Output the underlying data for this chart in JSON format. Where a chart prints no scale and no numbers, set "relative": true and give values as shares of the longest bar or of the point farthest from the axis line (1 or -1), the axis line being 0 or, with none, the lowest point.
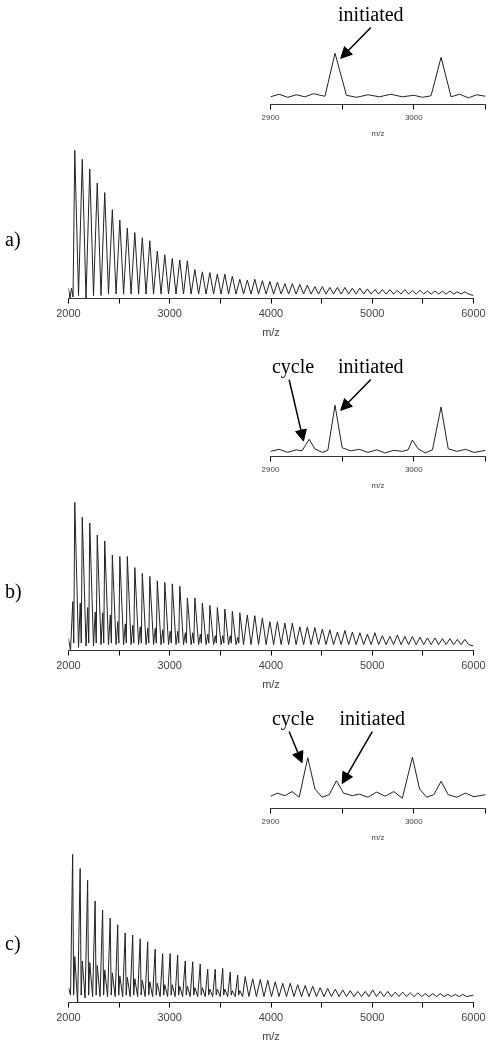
{
  "chart_data": [
    {
      "type": "line",
      "title": "a)",
      "xlabel": "m/z",
      "relative": true,
      "xlim": [
        2000,
        6000
      ],
      "xticks": [
        2000,
        {
          "value": 2500,
          "label": null
        },
        3000,
        {
          "value": 3500,
          "label": null
        },
        4000,
        {
          "value": 4500,
          "label": null
        },
        5000,
        {
          "value": 5500,
          "label": null
        },
        6000
      ],
      "series": [
        {
          "color": "#222222",
          "x": [
            2000,
            2015,
            2030,
            2045,
            2062,
            2099,
            2136,
            2173,
            2210,
            2247,
            2284,
            2321,
            2358,
            2395,
            2433,
            2470,
            2507,
            2544,
            2581,
            2618,
            2655,
            2692,
            2729,
            2766,
            2803,
            2840,
            2877,
            2914,
            2951,
            2988,
            3025,
            3062,
            3099,
            3136,
            3174,
            3211,
            3248,
            3285,
            3322,
            3359,
            3396,
            3433,
            3470,
            3507,
            3544,
            3581,
            3618,
            3655,
            3692,
            3729,
            3766,
            3803,
            3840,
            3877,
            3915,
            3952,
            3989,
            4026,
            4063,
            4100,
            4137,
            4174,
            4211,
            4248,
            4285,
            4322,
            4359,
            4396,
            4433,
            4470,
            4507,
            4544,
            4581,
            4618,
            4656,
            4693,
            4730,
            4767,
            4804,
            4841,
            4878,
            4915,
            4952,
            4989,
            5026,
            5063,
            5100,
            5137,
            5174,
            5211,
            5248,
            5285,
            5322,
            5359,
            5397,
            5434,
            5471,
            5508,
            5545,
            5582,
            5619,
            5656,
            5693,
            5730,
            5767,
            5804,
            5841,
            5878,
            5915,
            5952,
            6000
          ],
          "values": [
            0.07,
            0.0,
            0.07,
            0.01,
            1.0,
            0.02,
            0.94,
            0.0,
            0.875,
            0.02,
            0.78,
            0.02,
            0.715,
            0.03,
            0.6,
            0.03,
            0.53,
            0.03,
            0.475,
            0.03,
            0.445,
            0.03,
            0.41,
            0.03,
            0.39,
            0.03,
            0.32,
            0.03,
            0.295,
            0.03,
            0.27,
            0.03,
            0.26,
            0.03,
            0.255,
            0.03,
            0.195,
            0.03,
            0.18,
            0.03,
            0.175,
            0.03,
            0.165,
            0.03,
            0.165,
            0.03,
            0.15,
            0.03,
            0.13,
            0.03,
            0.125,
            0.03,
            0.13,
            0.03,
            0.12,
            0.03,
            0.115,
            0.03,
            0.11,
            0.03,
            0.1,
            0.03,
            0.1,
            0.03,
            0.095,
            0.03,
            0.09,
            0.03,
            0.08,
            0.03,
            0.08,
            0.03,
            0.075,
            0.03,
            0.075,
            0.03,
            0.075,
            0.03,
            0.07,
            0.03,
            0.07,
            0.03,
            0.065,
            0.03,
            0.06,
            0.03,
            0.06,
            0.03,
            0.06,
            0.03,
            0.055,
            0.03,
            0.06,
            0.03,
            0.055,
            0.03,
            0.055,
            0.03,
            0.05,
            0.03,
            0.05,
            0.03,
            0.05,
            0.03,
            0.05,
            0.03,
            0.045,
            0.03,
            0.045,
            0.03,
            0.02
          ]
        }
      ]
    },
    {
      "type": "line",
      "xlabel": "m/z",
      "relative": true,
      "xlim": [
        2900,
        3050
      ],
      "xticks": [
        2900,
        {
          "value": 2950,
          "label": null
        },
        3000,
        {
          "value": 3050,
          "label": null
        }
      ],
      "annotations": [
        {
          "text": "initiated",
          "x": 2945,
          "y": 1.0
        }
      ],
      "series": [
        {
          "color": "#222222",
          "x": [
            2900,
            2906,
            2912,
            2918,
            2924,
            2930,
            2938,
            2945,
            2953,
            2960,
            2968,
            2976,
            2984,
            2992,
            3000,
            3006,
            3012,
            3019,
            3026,
            3032,
            3038,
            3044,
            3050
          ],
          "values": [
            0.15,
            0.2,
            0.14,
            0.19,
            0.15,
            0.21,
            0.16,
            1.0,
            0.18,
            0.14,
            0.19,
            0.15,
            0.2,
            0.15,
            0.18,
            0.14,
            0.17,
            0.92,
            0.15,
            0.2,
            0.13,
            0.19,
            0.16
          ]
        }
      ]
    },
    {
      "type": "line",
      "title": "b)",
      "xlabel": "m/z",
      "relative": true,
      "xlim": [
        2000,
        6000
      ],
      "xticks": [
        2000,
        {
          "value": 2500,
          "label": null
        },
        3000,
        {
          "value": 3500,
          "label": null
        },
        4000,
        {
          "value": 4500,
          "label": null
        },
        5000,
        {
          "value": 5500,
          "label": null
        },
        6000
      ],
      "series": [
        {
          "color": "#222222",
          "x": [
            2000,
            2020,
            2042,
            2052,
            2062,
            2099,
            2116,
            2126,
            2136,
            2173,
            2190,
            2200,
            2210,
            2247,
            2264,
            2274,
            2284,
            2321,
            2338,
            2348,
            2358,
            2395,
            2413,
            2423,
            2433,
            2470,
            2487,
            2497,
            2507,
            2544,
            2561,
            2571,
            2581,
            2618,
            2635,
            2645,
            2655,
            2692,
            2709,
            2719,
            2729,
            2766,
            2783,
            2793,
            2803,
            2840,
            2857,
            2867,
            2877,
            2914,
            2931,
            2941,
            2951,
            2988,
            3005,
            3015,
            3025,
            3062,
            3079,
            3089,
            3099,
            3136,
            3154,
            3164,
            3174,
            3211,
            3228,
            3238,
            3248,
            3285,
            3302,
            3312,
            3322,
            3359,
            3376,
            3386,
            3396,
            3433,
            3450,
            3460,
            3470,
            3507,
            3524,
            3534,
            3544,
            3581,
            3598,
            3608,
            3618,
            3655,
            3672,
            3682,
            3692,
            3729,
            3766,
            3803,
            3840,
            3877,
            3915,
            3952,
            3989,
            4026,
            4063,
            4100,
            4137,
            4174,
            4211,
            4248,
            4285,
            4322,
            4359,
            4396,
            4433,
            4470,
            4507,
            4544,
            4581,
            4618,
            4656,
            4693,
            4730,
            4767,
            4804,
            4841,
            4878,
            4915,
            4952,
            4989,
            5026,
            5063,
            5100,
            5137,
            5174,
            5211,
            5248,
            5285,
            5322,
            5359,
            5397,
            5434,
            5471,
            5508,
            5545,
            5582,
            5619,
            5656,
            5693,
            5730,
            5767,
            5804,
            5841,
            5878,
            5915,
            5952,
            6000
          ],
          "values": [
            0.08,
            0.0,
            0.33,
            0.05,
            1.0,
            0.02,
            0.32,
            0.05,
            0.9,
            0.03,
            0.29,
            0.05,
            0.86,
            0.03,
            0.26,
            0.05,
            0.78,
            0.04,
            0.255,
            0.05,
            0.74,
            0.04,
            0.24,
            0.05,
            0.645,
            0.04,
            0.195,
            0.05,
            0.635,
            0.04,
            0.18,
            0.05,
            0.635,
            0.04,
            0.17,
            0.05,
            0.56,
            0.04,
            0.16,
            0.05,
            0.52,
            0.04,
            0.15,
            0.05,
            0.5,
            0.04,
            0.15,
            0.05,
            0.47,
            0.04,
            0.14,
            0.05,
            0.46,
            0.04,
            0.13,
            0.05,
            0.45,
            0.04,
            0.13,
            0.05,
            0.435,
            0.04,
            0.12,
            0.05,
            0.355,
            0.04,
            0.12,
            0.05,
            0.355,
            0.04,
            0.11,
            0.05,
            0.32,
            0.04,
            0.11,
            0.05,
            0.305,
            0.04,
            0.1,
            0.05,
            0.29,
            0.04,
            0.1,
            0.05,
            0.28,
            0.04,
            0.1,
            0.05,
            0.265,
            0.04,
            0.09,
            0.05,
            0.255,
            0.04,
            0.24,
            0.04,
            0.235,
            0.04,
            0.22,
            0.04,
            0.195,
            0.04,
            0.195,
            0.04,
            0.185,
            0.04,
            0.185,
            0.04,
            0.16,
            0.04,
            0.16,
            0.04,
            0.155,
            0.04,
            0.145,
            0.04,
            0.14,
            0.04,
            0.125,
            0.04,
            0.135,
            0.04,
            0.125,
            0.04,
            0.12,
            0.04,
            0.11,
            0.04,
            0.12,
            0.04,
            0.1,
            0.04,
            0.095,
            0.04,
            0.105,
            0.04,
            0.095,
            0.04,
            0.095,
            0.04,
            0.09,
            0.04,
            0.085,
            0.04,
            0.085,
            0.04,
            0.08,
            0.04,
            0.08,
            0.04,
            0.075,
            0.04,
            0.075,
            0.04,
            0.03
          ]
        }
      ]
    },
    {
      "type": "line",
      "xlabel": "m/z",
      "relative": true,
      "xlim": [
        2900,
        3050
      ],
      "xticks": [
        2900,
        {
          "value": 2950,
          "label": null
        },
        3000,
        {
          "value": 3050,
          "label": null
        }
      ],
      "annotations": [
        {
          "text": "cycle",
          "x": 2927,
          "y": 0.335
        },
        {
          "text": "initiated",
          "x": 2945,
          "y": 1.0
        }
      ],
      "series": [
        {
          "color": "#222222",
          "x": [
            2900,
            2906,
            2912,
            2918,
            2922,
            2927,
            2931,
            2936,
            2940,
            2945,
            2950,
            2956,
            2962,
            2968,
            2974,
            2980,
            2986,
            2992,
            2996,
            2999,
            3003,
            3008,
            3013,
            3019,
            3024,
            3030,
            3036,
            3042,
            3050
          ],
          "values": [
            0.1,
            0.14,
            0.08,
            0.13,
            0.11,
            0.335,
            0.15,
            0.08,
            0.12,
            1.0,
            0.17,
            0.11,
            0.14,
            0.08,
            0.13,
            0.07,
            0.12,
            0.1,
            0.13,
            0.32,
            0.15,
            0.07,
            0.13,
            0.965,
            0.15,
            0.1,
            0.14,
            0.08,
            0.12
          ]
        }
      ]
    },
    {
      "type": "line",
      "title": "c)",
      "xlabel": "m/z",
      "relative": true,
      "xlim": [
        2000,
        6000
      ],
      "xticks": [
        2000,
        {
          "value": 2500,
          "label": null
        },
        3000,
        {
          "value": 3500,
          "label": null
        },
        4000,
        {
          "value": 4500,
          "label": null
        },
        5000,
        {
          "value": 5500,
          "label": null
        },
        6000
      ],
      "series": [
        {
          "color": "#222222",
          "x": [
            2000,
            2020,
            2041,
            2051,
            2062,
            2090,
            2115,
            2125,
            2136,
            2164,
            2189,
            2199,
            2210,
            2238,
            2263,
            2273,
            2284,
            2312,
            2337,
            2347,
            2358,
            2386,
            2412,
            2422,
            2433,
            2461,
            2486,
            2496,
            2507,
            2535,
            2560,
            2570,
            2581,
            2609,
            2634,
            2644,
            2655,
            2683,
            2708,
            2718,
            2729,
            2757,
            2782,
            2792,
            2803,
            2831,
            2856,
            2866,
            2877,
            2905,
            2930,
            2940,
            2951,
            2979,
            3004,
            3014,
            3025,
            3053,
            3078,
            3088,
            3099,
            3127,
            3153,
            3163,
            3174,
            3202,
            3227,
            3237,
            3248,
            3276,
            3301,
            3311,
            3322,
            3350,
            3375,
            3385,
            3396,
            3424,
            3449,
            3459,
            3470,
            3498,
            3523,
            3533,
            3544,
            3572,
            3597,
            3607,
            3618,
            3646,
            3671,
            3681,
            3692,
            3720,
            3745,
            3782,
            3819,
            3856,
            3894,
            3931,
            3968,
            4005,
            4042,
            4079,
            4116,
            4153,
            4190,
            4227,
            4264,
            4301,
            4338,
            4375,
            4412,
            4449,
            4486,
            4523,
            4560,
            4597,
            4635,
            4672,
            4709,
            4746,
            4783,
            4820,
            4857,
            4894,
            4931,
            4968,
            5005,
            5042,
            5079,
            5116,
            5153,
            5190,
            5227,
            5264,
            5301,
            5338,
            5376,
            5413,
            5450,
            5487,
            5524,
            5561,
            5598,
            5635,
            5672,
            5709,
            5746,
            5783,
            5820,
            5857,
            5894,
            5931,
            6000
          ],
          "values": [
            0.1,
            0.05,
            1.0,
            0.05,
            0.31,
            0.0,
            0.905,
            0.05,
            0.28,
            0.03,
            0.825,
            0.05,
            0.27,
            0.04,
            0.685,
            0.05,
            0.25,
            0.04,
            0.625,
            0.05,
            0.22,
            0.04,
            0.57,
            0.05,
            0.2,
            0.04,
            0.525,
            0.05,
            0.18,
            0.04,
            0.47,
            0.05,
            0.17,
            0.04,
            0.455,
            0.05,
            0.16,
            0.04,
            0.43,
            0.05,
            0.15,
            0.04,
            0.41,
            0.05,
            0.14,
            0.04,
            0.36,
            0.05,
            0.13,
            0.04,
            0.33,
            0.05,
            0.12,
            0.04,
            0.33,
            0.05,
            0.12,
            0.04,
            0.32,
            0.05,
            0.11,
            0.04,
            0.28,
            0.05,
            0.11,
            0.04,
            0.275,
            0.05,
            0.1,
            0.04,
            0.26,
            0.05,
            0.1,
            0.04,
            0.225,
            0.05,
            0.09,
            0.04,
            0.225,
            0.05,
            0.09,
            0.04,
            0.23,
            0.05,
            0.09,
            0.04,
            0.205,
            0.05,
            0.08,
            0.04,
            0.185,
            0.05,
            0.08,
            0.04,
            0.175,
            0.04,
            0.16,
            0.04,
            0.155,
            0.04,
            0.15,
            0.04,
            0.14,
            0.04,
            0.13,
            0.04,
            0.13,
            0.04,
            0.12,
            0.04,
            0.115,
            0.04,
            0.11,
            0.04,
            0.1,
            0.04,
            0.095,
            0.04,
            0.09,
            0.04,
            0.085,
            0.04,
            0.08,
            0.04,
            0.075,
            0.04,
            0.075,
            0.04,
            0.085,
            0.04,
            0.075,
            0.04,
            0.075,
            0.04,
            0.07,
            0.04,
            0.07,
            0.04,
            0.065,
            0.04,
            0.065,
            0.04,
            0.06,
            0.04,
            0.06,
            0.04,
            0.06,
            0.04,
            0.055,
            0.04,
            0.055,
            0.04,
            0.055,
            0.04,
            0.05
          ]
        }
      ]
    },
    {
      "type": "line",
      "xlabel": "m/z",
      "relative": true,
      "xlim": [
        2900,
        3050
      ],
      "xticks": [
        2900,
        {
          "value": 2950,
          "label": null
        },
        3000,
        {
          "value": 3050,
          "label": null
        }
      ],
      "annotations": [
        {
          "text": "cycle",
          "x": 2926,
          "y": 0.99
        },
        {
          "text": "initiated",
          "x": 2946,
          "y": 0.54
        }
      ],
      "series": [
        {
          "color": "#222222",
          "x": [
            2900,
            2905,
            2910,
            2915,
            2920,
            2926,
            2931,
            2936,
            2941,
            2946,
            2951,
            2957,
            2962,
            2968,
            2974,
            2980,
            2986,
            2992,
            2999,
            3004,
            3009,
            3014,
            3019,
            3024,
            3030,
            3036,
            3042,
            3050
          ],
          "values": [
            0.24,
            0.3,
            0.25,
            0.33,
            0.22,
            0.99,
            0.38,
            0.22,
            0.27,
            0.54,
            0.3,
            0.25,
            0.28,
            0.22,
            0.32,
            0.24,
            0.33,
            0.2,
            1.0,
            0.38,
            0.22,
            0.27,
            0.53,
            0.27,
            0.22,
            0.3,
            0.23,
            0.27
          ]
        }
      ]
    }
  ]
}
